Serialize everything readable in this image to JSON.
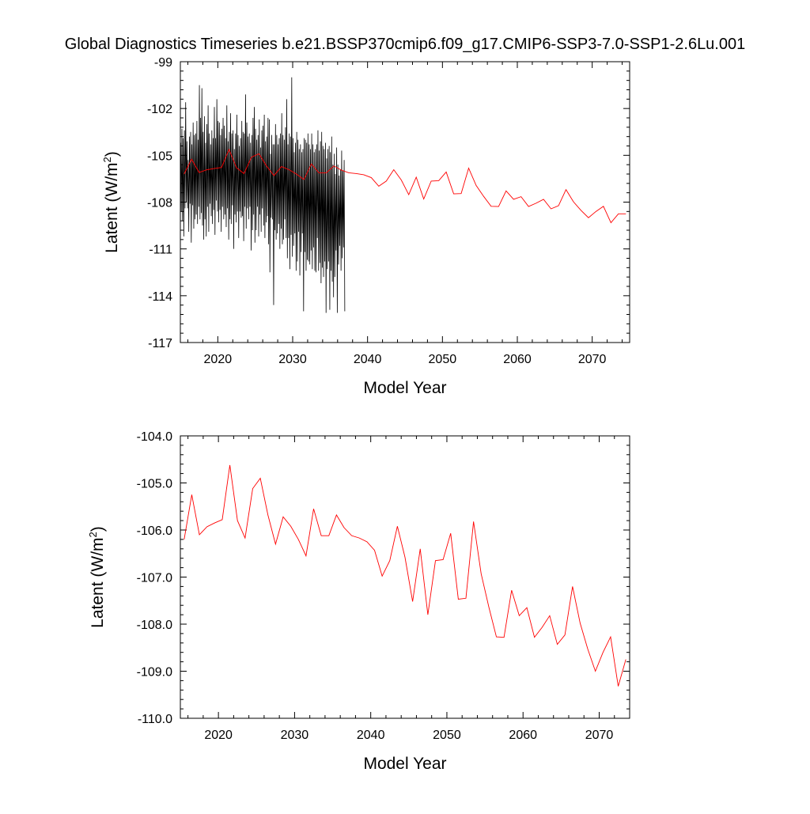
{
  "figure": {
    "title": "Global Diagnostics Timeseries b.e21.BSSP370cmip6.f09_g17.CMIP6-SSP3-7.0-SSP1-2.6Lu.001"
  },
  "colors": {
    "monthly": "#000000",
    "annual": "#ff0000",
    "axis": "#000000"
  },
  "chart_data": [
    {
      "type": "line",
      "title": "",
      "xlabel": "Model Year",
      "ylabel_main": "Latent (W/m",
      "ylabel_sup": "2",
      "ylabel_close": ")",
      "xlim": [
        2015,
        2075
      ],
      "ylim": [
        -117,
        -99
      ],
      "xticks": [
        2020,
        2030,
        2040,
        2050,
        2060,
        2070
      ],
      "yticks": [
        -117,
        -114,
        -111,
        -108,
        -105,
        -102,
        -99
      ],
      "ytick_labels": [
        "-117",
        "-114",
        "-111",
        "-108",
        "-105",
        "-102",
        "-99"
      ],
      "series": [
        {
          "description_only": false,
          "kind": "monthly",
          "x_start": 2015.042,
          "x_step": 0.08333,
          "values": [
            -104.2,
            -108.6,
            -103.3,
            -109.2,
            -103.9,
            -110.2,
            -103.4,
            -108.4,
            -101.6,
            -108.0,
            -104.1,
            -108.4,
            -105.3,
            -109.9,
            -103.8,
            -108.1,
            -103.5,
            -110.6,
            -104.3,
            -108.2,
            -102.9,
            -109.7,
            -103.7,
            -109.1,
            -103.6,
            -108.8,
            -102.8,
            -109.4,
            -104.0,
            -108.3,
            -100.5,
            -109.1,
            -102.6,
            -108.7,
            -100.7,
            -109.5,
            -103.5,
            -110.4,
            -102.5,
            -109.1,
            -104.2,
            -110.2,
            -103.0,
            -108.3,
            -101.8,
            -109.9,
            -103.6,
            -108.1,
            -104.3,
            -108.9,
            -103.4,
            -109.4,
            -103.9,
            -108.5,
            -101.9,
            -110.1,
            -103.9,
            -107.9,
            -101.4,
            -108.6,
            -102.8,
            -109.3,
            -102.9,
            -108.5,
            -103.7,
            -109.9,
            -103.3,
            -108.3,
            -102.6,
            -109.1,
            -103.1,
            -108.8,
            -103.9,
            -109.6,
            -101.8,
            -108.4,
            -104.1,
            -110.4,
            -103.5,
            -109.1,
            -102.3,
            -109.4,
            -103.6,
            -108.2,
            -103.4,
            -111.0,
            -104.6,
            -108.8,
            -103.6,
            -109.3,
            -102.4,
            -108.6,
            -103.7,
            -110.3,
            -104.4,
            -108.6,
            -103.9,
            -109.0,
            -102.8,
            -108.9,
            -103.5,
            -110.5,
            -103.6,
            -108.3,
            -101.1,
            -109.7,
            -102.9,
            -108.4,
            -103.8,
            -109.1,
            -103.6,
            -108.3,
            -104.2,
            -111.1,
            -103.7,
            -109.8,
            -102.6,
            -108.8,
            -101.9,
            -110.6,
            -103.3,
            -109.8,
            -104.0,
            -108.3,
            -103.7,
            -110.2,
            -102.7,
            -108.8,
            -104.5,
            -109.9,
            -103.4,
            -108.4,
            -103.1,
            -109.5,
            -102.4,
            -110.3,
            -104.1,
            -109.3,
            -103.8,
            -108.9,
            -102.6,
            -110.7,
            -102.7,
            -112.5,
            -104.9,
            -109.0,
            -103.7,
            -109.1,
            -104.3,
            -114.6,
            -104.3,
            -109.8,
            -103.0,
            -110.4,
            -103.7,
            -110.0,
            -104.3,
            -109.4,
            -103.9,
            -111.0,
            -103.6,
            -109.7,
            -102.3,
            -110.7,
            -103.7,
            -110.4,
            -104.0,
            -109.1,
            -103.2,
            -110.3,
            -101.4,
            -111.6,
            -104.3,
            -110.3,
            -103.6,
            -112.3,
            -103.8,
            -110.1,
            -100.0,
            -111.5,
            -103.9,
            -110.8,
            -104.8,
            -110.0,
            -104.2,
            -112.4,
            -103.5,
            -111.8,
            -104.0,
            -109.9,
            -104.6,
            -112.7,
            -104.3,
            -111.2,
            -104.8,
            -110.0,
            -104.6,
            -115.0,
            -103.9,
            -111.2,
            -104.0,
            -112.4,
            -104.2,
            -111.7,
            -103.6,
            -111.8,
            -104.3,
            -112.0,
            -104.6,
            -111.1,
            -103.6,
            -112.3,
            -104.3,
            -110.9,
            -104.8,
            -112.4,
            -104.6,
            -112.5,
            -104.3,
            -110.3,
            -103.4,
            -112.4,
            -104.7,
            -111.9,
            -104.1,
            -113.2,
            -103.5,
            -112.2,
            -104.4,
            -112.8,
            -104.6,
            -111.8,
            -104.2,
            -115.1,
            -105.2,
            -112.3,
            -104.6,
            -111.8,
            -104.4,
            -114.9,
            -104.8,
            -112.4,
            -103.8,
            -113.1,
            -105.6,
            -114.1,
            -104.9,
            -112.8,
            -106.2,
            -111.1,
            -104.5,
            -115.1,
            -105.6,
            -112.0,
            -106.3,
            -110.8,
            -105.9,
            -112.4,
            -104.7,
            -111.6,
            -106.0,
            -110.9,
            -105.3,
            -115.0
          ]
        },
        {
          "kind": "annual",
          "x": [
            2015.5,
            2016.5,
            2017.5,
            2018.5,
            2019.5,
            2020.5,
            2021.5,
            2022.5,
            2023.5,
            2024.5,
            2025.5,
            2026.5,
            2027.5,
            2028.5,
            2029.5,
            2030.5,
            2031.5,
            2032.5,
            2033.5,
            2034.5,
            2035.5,
            2036.5,
            2037.5,
            2038.5,
            2039.5,
            2040.5,
            2041.5,
            2042.5,
            2043.5,
            2044.5,
            2045.5,
            2046.5,
            2047.5,
            2048.5,
            2049.5,
            2050.5,
            2051.5,
            2052.5,
            2053.5,
            2054.5,
            2055.5,
            2056.5,
            2057.5,
            2058.5,
            2059.5,
            2060.5,
            2061.5,
            2062.5,
            2063.5,
            2064.5,
            2065.5,
            2066.5,
            2067.5,
            2068.5,
            2069.5,
            2070.5,
            2071.5,
            2072.5,
            2073.5,
            2074.5
          ],
          "values": [
            -106.2,
            -105.25,
            -106.1,
            -105.93,
            -105.85,
            -105.78,
            -104.62,
            -105.8,
            -106.17,
            -105.12,
            -104.9,
            -105.68,
            -106.3,
            -105.72,
            -105.92,
            -106.2,
            -106.55,
            -105.55,
            -106.12,
            -106.12,
            -105.68,
            -105.95,
            -106.12,
            -106.17,
            -106.25,
            -106.43,
            -106.98,
            -106.65,
            -105.92,
            -106.58,
            -107.52,
            -106.4,
            -107.8,
            -106.65,
            -106.63,
            -106.07,
            -107.47,
            -107.45,
            -105.82,
            -106.93,
            -107.63,
            -108.27,
            -108.28,
            -107.28,
            -107.82,
            -107.65,
            -108.28,
            -108.07,
            -107.82,
            -108.43,
            -108.23,
            -107.2,
            -107.98,
            -108.53,
            -109.0,
            -108.6,
            -108.27,
            -109.32,
            -108.75,
            -108.75
          ]
        }
      ]
    },
    {
      "type": "line",
      "title": "",
      "xlabel": "Model Year",
      "ylabel_main": "Latent (W/m",
      "ylabel_sup": "2",
      "ylabel_close": ")",
      "xlim": [
        2015,
        2074
      ],
      "ylim": [
        -110,
        -104
      ],
      "xticks": [
        2020,
        2030,
        2040,
        2050,
        2060,
        2070
      ],
      "yticks": [
        -110,
        -109,
        -108,
        -107,
        -106,
        -105,
        -104
      ],
      "ytick_labels": [
        "-110.0",
        "-109.0",
        "-108.0",
        "-107.0",
        "-106.0",
        "-105.0",
        "-104.0"
      ],
      "series": [
        {
          "kind": "annual",
          "use_annual_from_top": true
        }
      ]
    }
  ]
}
